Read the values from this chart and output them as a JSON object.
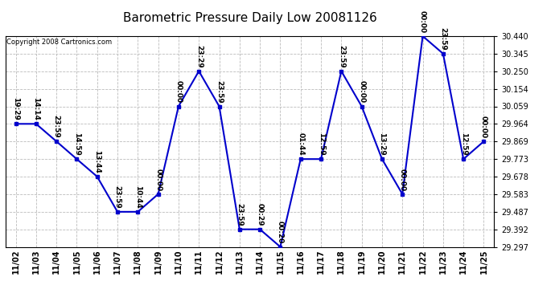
{
  "title": "Barometric Pressure Daily Low 20081126",
  "copyright": "Copyright 2008 Cartronics.com",
  "x_labels": [
    "11/02",
    "11/03",
    "11/04",
    "11/05",
    "11/06",
    "11/07",
    "11/08",
    "11/09",
    "11/10",
    "11/11",
    "11/12",
    "11/13",
    "11/14",
    "11/15",
    "11/16",
    "11/17",
    "11/18",
    "11/19",
    "11/20",
    "11/21",
    "11/22",
    "11/23",
    "11/24",
    "11/25"
  ],
  "y_values": [
    29.964,
    29.964,
    29.869,
    29.773,
    29.678,
    29.487,
    29.487,
    29.583,
    30.059,
    30.25,
    30.059,
    29.392,
    29.392,
    29.297,
    29.773,
    29.773,
    30.25,
    30.059,
    29.773,
    29.583,
    30.44,
    30.345,
    29.773,
    29.869
  ],
  "point_labels": [
    "19:29",
    "14:14",
    "23:59",
    "14:59",
    "13:44",
    "23:59",
    "10:44",
    "00:00",
    "00:00",
    "23:29",
    "23:59",
    "23:59",
    "00:29",
    "00:20",
    "01:44",
    "12:59",
    "23:59",
    "00:00",
    "13:29",
    "00:00",
    "00:00",
    "23:59",
    "12:59",
    "00:00"
  ],
  "ylim_min": 29.297,
  "ylim_max": 30.44,
  "yticks": [
    29.297,
    29.392,
    29.487,
    29.583,
    29.678,
    29.773,
    29.869,
    29.964,
    30.059,
    30.154,
    30.25,
    30.345,
    30.44
  ],
  "line_color": "#0000cc",
  "marker_color": "#0000cc",
  "bg_color": "#ffffff",
  "grid_color": "#bbbbbb",
  "title_fontsize": 11,
  "label_fontsize": 6.5,
  "tick_fontsize": 7,
  "copyright_fontsize": 6
}
